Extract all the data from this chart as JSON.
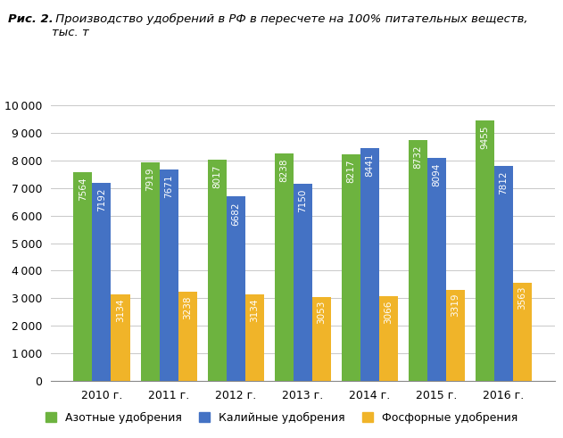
{
  "title_bold": "Рис. 2.",
  "title_italic": " Производство удобрений в РФ в пересчете на 100% питательных веществ,\nтыс. т",
  "years": [
    "2010 г.",
    "2011 г.",
    "2012 г.",
    "2013 г.",
    "2014 г.",
    "2015 г.",
    "2016 г."
  ],
  "azot": [
    7564,
    7919,
    8017,
    8238,
    8217,
    8732,
    9455
  ],
  "kaliy": [
    7192,
    7671,
    6682,
    7150,
    8441,
    8094,
    7812
  ],
  "fosfor": [
    3134,
    3238,
    3134,
    3053,
    3066,
    3319,
    3563
  ],
  "color_azot": "#6db33f",
  "color_kaliy": "#4472c4",
  "color_fosfor": "#f0b429",
  "ylim": [
    0,
    10000
  ],
  "yticks": [
    0,
    1000,
    2000,
    3000,
    4000,
    5000,
    6000,
    7000,
    8000,
    9000,
    10000
  ],
  "legend_labels": [
    "Азотные удобрения",
    "Калийные удобрения",
    "Фосфорные удобрения"
  ],
  "bar_width": 0.28,
  "label_fontsize": 7.5,
  "tick_fontsize": 9,
  "legend_fontsize": 9,
  "value_color": "white",
  "background_color": "#ffffff",
  "grid_color": "#c8c8c8"
}
